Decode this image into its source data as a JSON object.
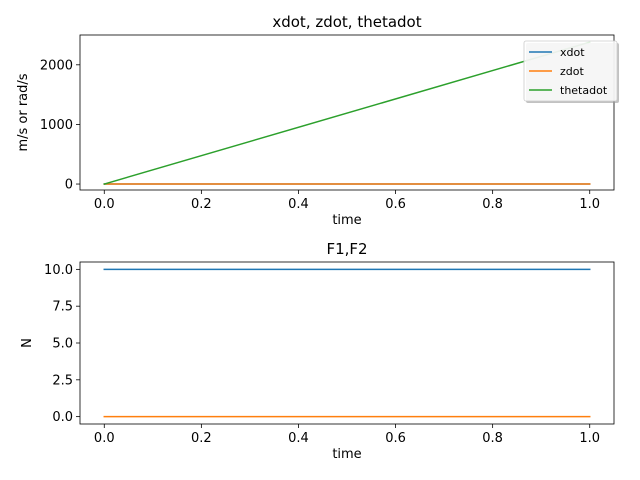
{
  "chart_data": [
    {
      "type": "line",
      "title": "xdot, zdot, thetadot",
      "xlabel": "time",
      "ylabel": "m/s or rad/s",
      "xlim": [
        -0.05,
        1.05
      ],
      "ylim": [
        -100,
        2500
      ],
      "xticks": [
        0.0,
        0.2,
        0.4,
        0.6,
        0.8,
        1.0
      ],
      "xtick_labels": [
        "0.0",
        "0.2",
        "0.4",
        "0.6",
        "0.8",
        "1.0"
      ],
      "yticks": [
        0,
        1000,
        2000
      ],
      "ytick_labels": [
        "0",
        "1000",
        "2000"
      ],
      "legend": "top-right",
      "series": [
        {
          "name": "xdot",
          "color": "#1f77b4",
          "x": [
            0.0,
            1.0
          ],
          "y": [
            0,
            0
          ]
        },
        {
          "name": "zdot",
          "color": "#ff7f0e",
          "x": [
            0.0,
            1.0
          ],
          "y": [
            0,
            0
          ]
        },
        {
          "name": "thetadot",
          "color": "#2ca02c",
          "x": [
            0.0,
            1.0
          ],
          "y": [
            0,
            2380
          ]
        }
      ]
    },
    {
      "type": "line",
      "title": "F1,F2",
      "xlabel": "time",
      "ylabel": "N",
      "xlim": [
        -0.05,
        1.05
      ],
      "ylim": [
        -0.5,
        10.5
      ],
      "xticks": [
        0.0,
        0.2,
        0.4,
        0.6,
        0.8,
        1.0
      ],
      "xtick_labels": [
        "0.0",
        "0.2",
        "0.4",
        "0.6",
        "0.8",
        "1.0"
      ],
      "yticks": [
        0.0,
        2.5,
        5.0,
        7.5,
        10.0
      ],
      "ytick_labels": [
        "0.0",
        "2.5",
        "5.0",
        "7.5",
        "10.0"
      ],
      "series": [
        {
          "color": "#1f77b4",
          "x": [
            0.0,
            1.0
          ],
          "y": [
            10,
            10
          ]
        },
        {
          "color": "#ff7f0e",
          "x": [
            0.0,
            1.0
          ],
          "y": [
            0,
            0
          ]
        }
      ]
    }
  ]
}
